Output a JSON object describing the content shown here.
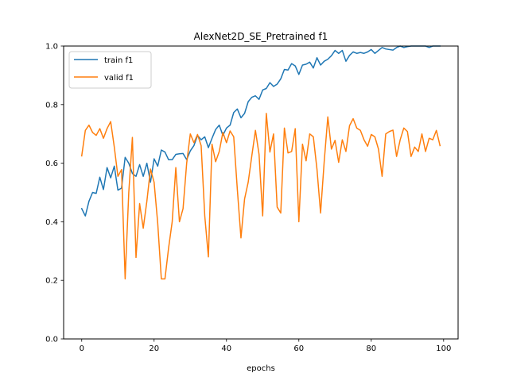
{
  "chart_data": {
    "type": "line",
    "title": "AlexNet2D_SE_Pretrained f1",
    "xlabel": "epochs",
    "ylabel": "",
    "xlim": [
      -5,
      104
    ],
    "ylim": [
      0.0,
      1.0
    ],
    "xticks": [
      0,
      20,
      40,
      60,
      80,
      100
    ],
    "yticks": [
      0.0,
      0.2,
      0.4,
      0.6,
      0.8,
      1.0
    ],
    "xtick_labels": [
      "0",
      "20",
      "40",
      "60",
      "80",
      "100"
    ],
    "ytick_labels": [
      "0.0",
      "0.2",
      "0.4",
      "0.6",
      "0.8",
      "1.0"
    ],
    "grid": false,
    "legend_position": "upper-left",
    "x": [
      0,
      1,
      2,
      3,
      4,
      5,
      6,
      7,
      8,
      9,
      10,
      11,
      12,
      13,
      14,
      15,
      16,
      17,
      18,
      19,
      20,
      21,
      22,
      23,
      24,
      25,
      26,
      27,
      28,
      29,
      30,
      31,
      32,
      33,
      34,
      35,
      36,
      37,
      38,
      39,
      40,
      41,
      42,
      43,
      44,
      45,
      46,
      47,
      48,
      49,
      50,
      51,
      52,
      53,
      54,
      55,
      56,
      57,
      58,
      59,
      60,
      61,
      62,
      63,
      64,
      65,
      66,
      67,
      68,
      69,
      70,
      71,
      72,
      73,
      74,
      75,
      76,
      77,
      78,
      79,
      80,
      81,
      82,
      83,
      84,
      85,
      86,
      87,
      88,
      89,
      90,
      91,
      92,
      93,
      94,
      95,
      96,
      97,
      98,
      99
    ],
    "series": [
      {
        "name": "train f1",
        "color": "#1f77b4",
        "values": [
          0.445,
          0.42,
          0.47,
          0.5,
          0.497,
          0.552,
          0.51,
          0.585,
          0.55,
          0.59,
          0.508,
          0.515,
          0.62,
          0.6,
          0.565,
          0.555,
          0.595,
          0.555,
          0.6,
          0.535,
          0.615,
          0.59,
          0.645,
          0.638,
          0.612,
          0.612,
          0.63,
          0.632,
          0.633,
          0.612,
          0.642,
          0.66,
          0.695,
          0.68,
          0.69,
          0.653,
          0.685,
          0.715,
          0.73,
          0.695,
          0.72,
          0.73,
          0.773,
          0.785,
          0.755,
          0.77,
          0.81,
          0.825,
          0.83,
          0.818,
          0.85,
          0.855,
          0.875,
          0.862,
          0.87,
          0.888,
          0.92,
          0.918,
          0.94,
          0.932,
          0.903,
          0.935,
          0.938,
          0.945,
          0.925,
          0.96,
          0.935,
          0.948,
          0.955,
          0.967,
          0.985,
          0.975,
          0.985,
          0.948,
          0.968,
          0.98,
          0.975,
          0.978,
          0.975,
          0.98,
          0.988,
          0.975,
          0.985,
          0.995,
          0.99,
          0.988,
          0.986,
          0.995,
          1.0,
          0.995,
          0.998,
          1.0,
          1.0,
          1.0,
          1.0,
          1.0,
          0.995,
          1.0,
          1.0,
          1.0
        ]
      },
      {
        "name": "valid f1",
        "color": "#ff7f0e",
        "values": [
          0.625,
          0.712,
          0.73,
          0.705,
          0.695,
          0.718,
          0.685,
          0.718,
          0.742,
          0.655,
          0.555,
          0.578,
          0.205,
          0.5,
          0.688,
          0.278,
          0.462,
          0.378,
          0.47,
          0.58,
          0.535,
          0.395,
          0.205,
          0.205,
          0.31,
          0.4,
          0.585,
          0.4,
          0.445,
          0.6,
          0.7,
          0.67,
          0.698,
          0.66,
          0.42,
          0.28,
          0.665,
          0.605,
          0.64,
          0.705,
          0.67,
          0.71,
          0.69,
          0.51,
          0.345,
          0.478,
          0.535,
          0.625,
          0.712,
          0.63,
          0.42,
          0.77,
          0.638,
          0.7,
          0.45,
          0.43,
          0.72,
          0.635,
          0.64,
          0.718,
          0.4,
          0.665,
          0.608,
          0.7,
          0.69,
          0.58,
          0.43,
          0.605,
          0.758,
          0.648,
          0.678,
          0.603,
          0.68,
          0.64,
          0.728,
          0.752,
          0.72,
          0.712,
          0.68,
          0.658,
          0.698,
          0.69,
          0.648,
          0.555,
          0.7,
          0.708,
          0.713,
          0.623,
          0.68,
          0.72,
          0.708,
          0.623,
          0.655,
          0.64,
          0.7,
          0.64,
          0.685,
          0.68,
          0.712,
          0.66
        ]
      }
    ]
  }
}
